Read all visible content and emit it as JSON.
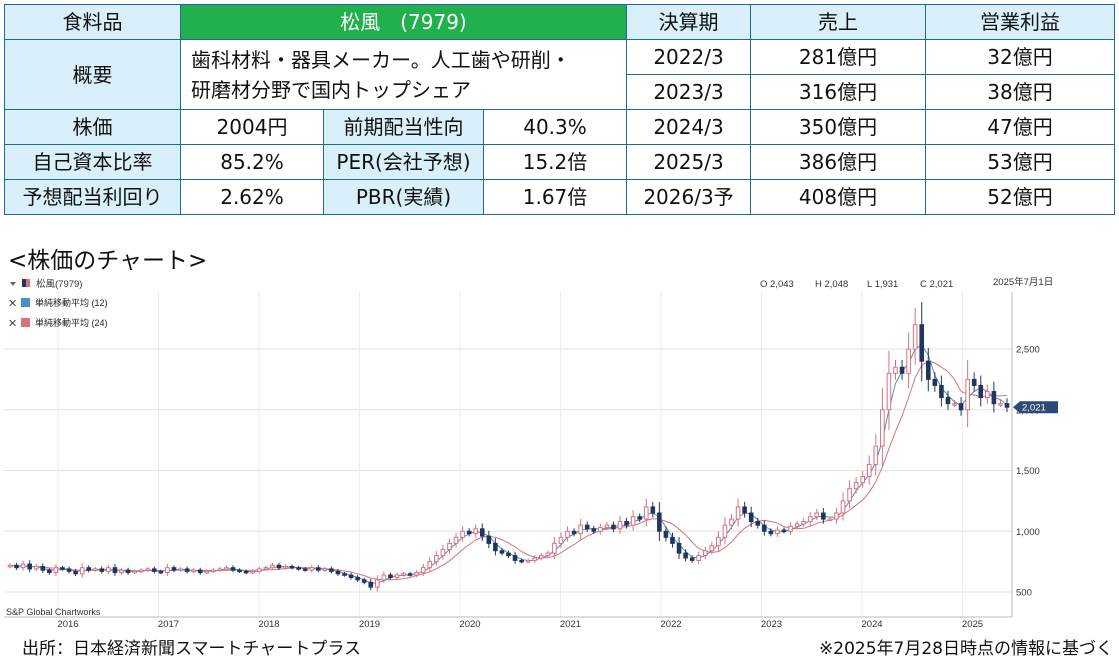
{
  "table": {
    "h_food": "食料品",
    "company": "松風　(7979)",
    "h_fy": "決算期",
    "h_sales": "売上",
    "h_op": "営業利益",
    "h_overview": "概要",
    "desc_line1": "歯科材料・器具メーカー。人工歯や研削・",
    "desc_line2": "研磨材分野で国内トップシェア",
    "h_price": "株価",
    "price": "2004円",
    "h_payout": "前期配当性向",
    "payout": "40.3%",
    "h_equity": "自己資本比率",
    "equity": "85.2%",
    "h_per": "PER(会社予想)",
    "per": "15.2倍",
    "h_yield": "予想配当利回り",
    "yield": "2.62%",
    "h_pbr": "PBR(実績)",
    "pbr": "1.67倍",
    "fin": [
      {
        "fy": "2022/3",
        "sales": "281億円",
        "op": "32億円"
      },
      {
        "fy": "2023/3",
        "sales": "316億円",
        "op": "38億円"
      },
      {
        "fy": "2024/3",
        "sales": "350億円",
        "op": "47億円"
      },
      {
        "fy": "2025/3",
        "sales": "386億円",
        "op": "53億円"
      },
      {
        "fy": "2026/3予",
        "sales": "408億円",
        "op": "52億円"
      }
    ]
  },
  "section_title": "<株価のチャート>",
  "footer": {
    "source": "出所：日本経済新聞スマートチャートプラス",
    "note": "※2025年7月28日時点の情報に基づく"
  },
  "chart_data": {
    "type": "candlestick",
    "symbol": "松風(7979)",
    "ohlc_readout": {
      "o": "O 2,043",
      "h": "H 2,048",
      "l": "L 1,931",
      "c": "C 2,021"
    },
    "date": "2025年7月1日",
    "last_price": 2021,
    "last_price_label": "2,021",
    "credit": "S&P Global Chartworks",
    "legend": [
      {
        "label": "単純移動平均 (12)",
        "color": "#4a90c8"
      },
      {
        "label": "単純移動平均 (24)",
        "color": "#d9727a"
      }
    ],
    "colors": {
      "up": "#d9727a",
      "down": "#24355c",
      "ma12": "#4a90c8",
      "ma24": "#d9727a",
      "price_tag": "#2c4a75"
    },
    "x_labels": [
      "2016",
      "2017",
      "2018",
      "2019",
      "2020",
      "2021",
      "2022",
      "2023",
      "2024",
      "2025"
    ],
    "y_ticks": [
      {
        "value": 2500,
        "label": "2,500"
      },
      {
        "value": 2000,
        "label": "2,000"
      },
      {
        "value": 1500,
        "label": "1,500"
      },
      {
        "value": 1000,
        "label": "1,000"
      },
      {
        "value": 500,
        "label": "500"
      }
    ],
    "ylim": [
      400,
      2700
    ],
    "grid": true,
    "legend_position": "top-left",
    "close": [
      720,
      700,
      730,
      690,
      710,
      680,
      660,
      700,
      690,
      670,
      650,
      700,
      680,
      690,
      670,
      700,
      660,
      680,
      660,
      670,
      680,
      690,
      670,
      660,
      700,
      680,
      690,
      670,
      680,
      660,
      670,
      680,
      690,
      700,
      680,
      670,
      660,
      670,
      690,
      700,
      720,
      700,
      710,
      700,
      690,
      680,
      700,
      680,
      690,
      670,
      650,
      640,
      620,
      600,
      580,
      540,
      600,
      640,
      620,
      640,
      650,
      640,
      660,
      700,
      750,
      800,
      850,
      900,
      950,
      1000,
      980,
      1020,
      960,
      900,
      840,
      820,
      800,
      760,
      750,
      760,
      780,
      800,
      820,
      900,
      950,
      1000,
      980,
      1050,
      1020,
      1000,
      1030,
      1050,
      1020,
      1080,
      1050,
      1120,
      1100,
      1200,
      1150,
      1000,
      950,
      900,
      820,
      780,
      760,
      800,
      840,
      880,
      950,
      1050,
      1100,
      1200,
      1150,
      1080,
      1050,
      1000,
      980,
      1010,
      1000,
      1040,
      1060,
      1080,
      1120,
      1150,
      1100,
      1100,
      1150,
      1250,
      1350,
      1400,
      1450,
      1550,
      1700,
      2000,
      2300,
      2350,
      2300,
      2500,
      2700,
      2400,
      2250,
      2200,
      2100,
      2050,
      2050,
      2000,
      2250,
      2200,
      2100,
      2150,
      2050,
      2050,
      2021
    ]
  }
}
